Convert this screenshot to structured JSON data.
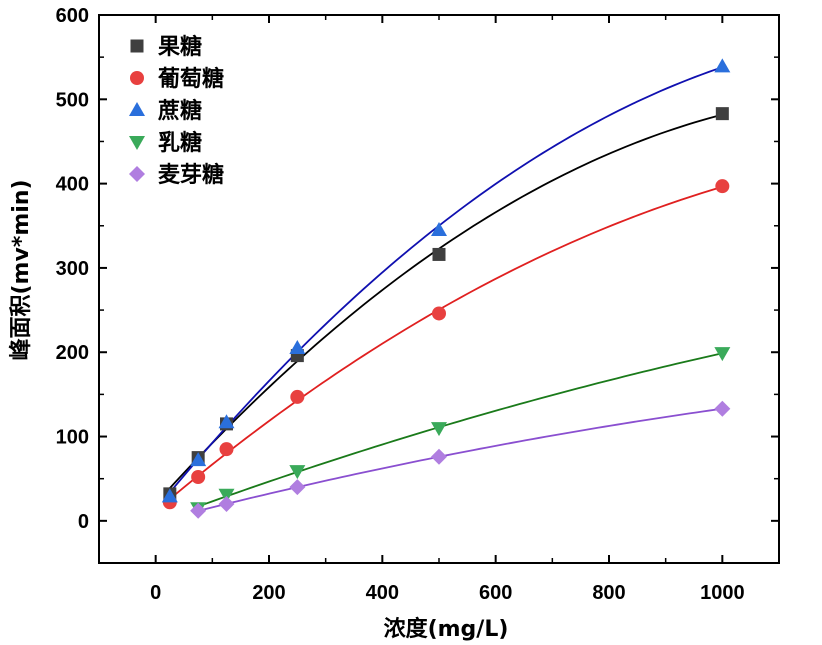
{
  "chart_data": {
    "type": "scatter",
    "title": "",
    "xlabel": "浓度(mg/L)",
    "ylabel": "峰面积(mv*min)",
    "xlim": [
      -100,
      1100
    ],
    "ylim": [
      -50,
      600
    ],
    "xticks": [
      0,
      200,
      400,
      600,
      800,
      1000
    ],
    "yticks": [
      0,
      100,
      200,
      300,
      400,
      500,
      600
    ],
    "legend_position": "top-left",
    "fit": "quadratic trend line per series",
    "series": [
      {
        "name": "果糖",
        "marker": "square",
        "color": "#3f3f3f",
        "line_color": "#000000",
        "x": [
          25,
          75,
          125,
          250,
          500,
          1000
        ],
        "y": [
          32,
          75,
          115,
          196,
          316,
          483
        ]
      },
      {
        "name": "葡萄糖",
        "marker": "circle",
        "color": "#e8403f",
        "line_color": "#e02020",
        "x": [
          25,
          75,
          125,
          250,
          500,
          1000
        ],
        "y": [
          22,
          52,
          85,
          147,
          246,
          397
        ]
      },
      {
        "name": "蔗糖",
        "marker": "triangle-up",
        "color": "#2a6fdc",
        "line_color": "#1010b0",
        "x": [
          25,
          75,
          125,
          250,
          500,
          1000
        ],
        "y": [
          29,
          72,
          117,
          205,
          345,
          539
        ]
      },
      {
        "name": "乳糖",
        "marker": "triangle-down",
        "color": "#3aaa5a",
        "line_color": "#1a7a1a",
        "x": [
          75,
          125,
          250,
          500,
          1000
        ],
        "y": [
          15,
          31,
          59,
          110,
          199
        ]
      },
      {
        "name": "麦芽糖",
        "marker": "diamond",
        "color": "#b07ee0",
        "line_color": "#8a4fd0",
        "x": [
          75,
          125,
          250,
          500,
          1000
        ],
        "y": [
          12,
          20,
          40,
          76,
          133
        ]
      }
    ]
  }
}
